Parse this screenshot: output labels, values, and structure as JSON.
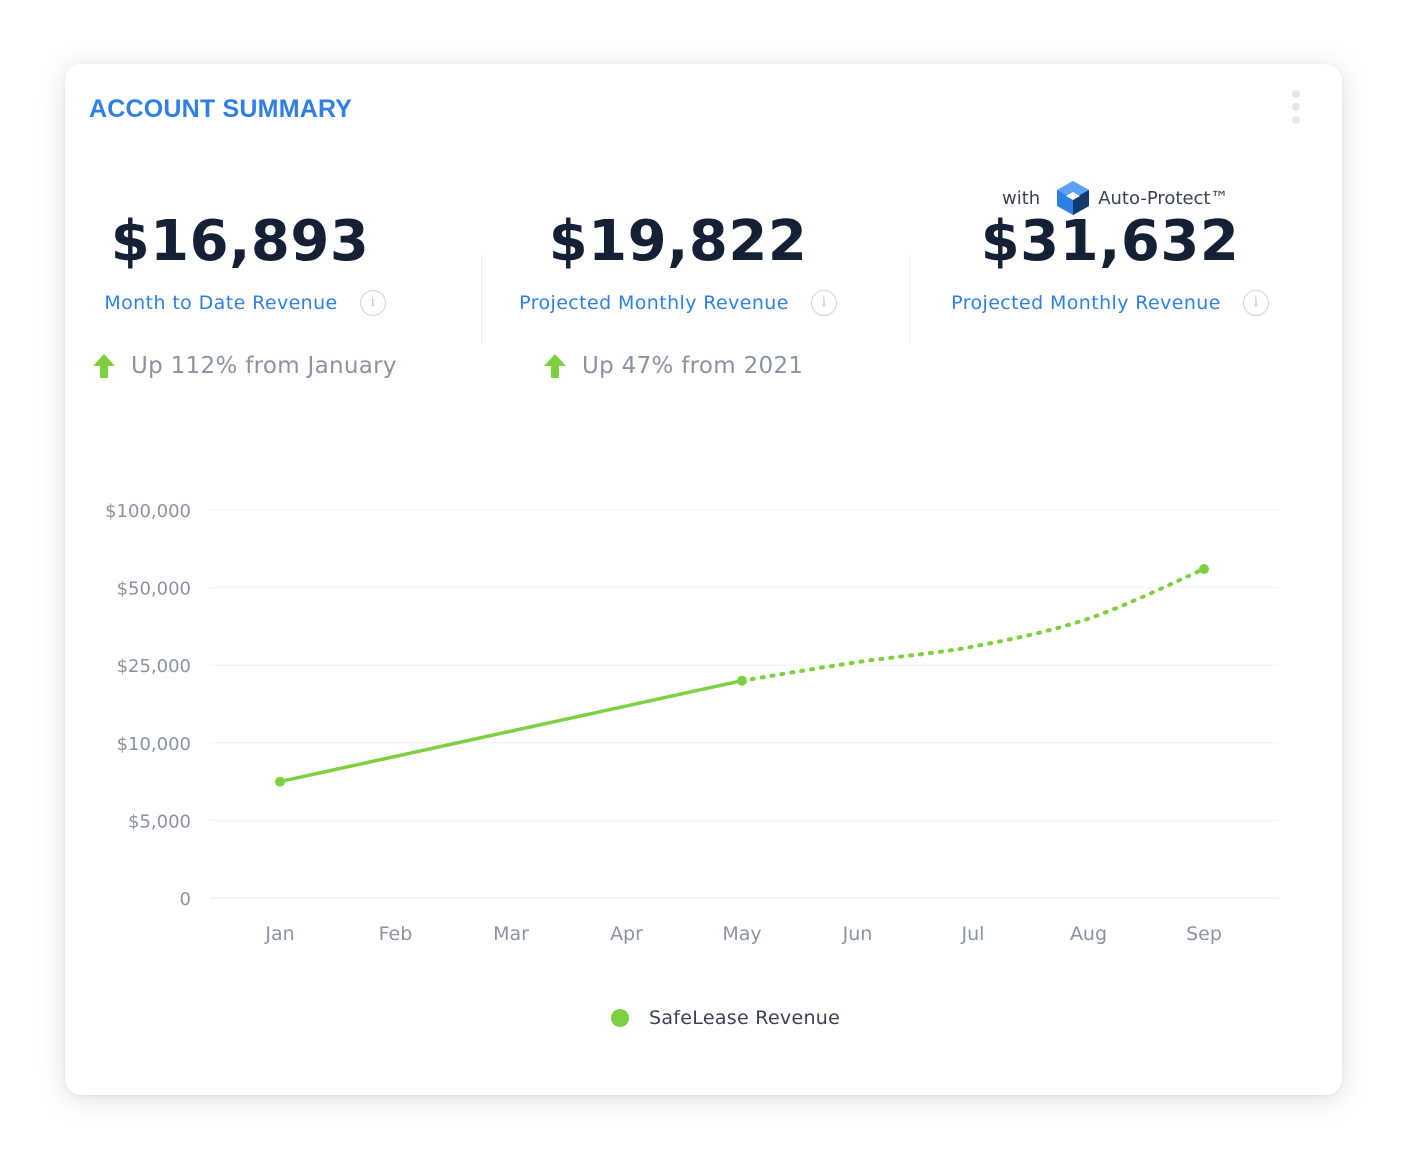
{
  "card": {
    "title": "ACCOUNT SUMMARY",
    "menu_icon": "kebab-menu-icon"
  },
  "metrics": [
    {
      "value": "$16,893",
      "label": "Month to Date Revenue",
      "info_icon": "info-icon",
      "change": "Up 112% from January",
      "change_icon": "arrow-up-icon"
    },
    {
      "value": "$19,822",
      "label": "Projected Monthly Revenue",
      "info_icon": "info-icon",
      "change": "Up 47% from 2021",
      "change_icon": "arrow-up-icon"
    },
    {
      "value": "$31,632",
      "label": "Projected Monthly Revenue",
      "info_icon": "info-icon",
      "prefix": "with",
      "brand": "Auto-Protect™",
      "brand_icon": "auto-protect-logo"
    }
  ],
  "colors": {
    "accent": "#2f7fe6",
    "value": "#142033",
    "positive": "#7ed041",
    "muted": "#8a93a1"
  },
  "chart_data": {
    "type": "line",
    "categories": [
      "Jan",
      "Feb",
      "Mar",
      "Apr",
      "May",
      "Jun",
      "Jul",
      "Aug",
      "Sep"
    ],
    "y_ticks": [
      "0",
      "$5,000",
      "$10,000",
      "$25,000",
      "$50,000",
      "$100,000"
    ],
    "y_tick_values": [
      0,
      5000,
      10000,
      25000,
      50000,
      100000
    ],
    "y_scale": "categorical-ticks",
    "grid": true,
    "legend_position": "bottom-center",
    "series": [
      {
        "name": "SafeLease Revenue",
        "color": "#7ed041",
        "actual": [
          {
            "x": "Jan",
            "y": 7500
          },
          {
            "x": "May",
            "y": 22000
          }
        ],
        "projected": [
          {
            "x": "May",
            "y": 22000
          },
          {
            "x": "Jun",
            "y": 26000
          },
          {
            "x": "Jul",
            "y": 31000
          },
          {
            "x": "Aug",
            "y": 40000
          },
          {
            "x": "Sep",
            "y": 62000
          }
        ]
      }
    ]
  }
}
